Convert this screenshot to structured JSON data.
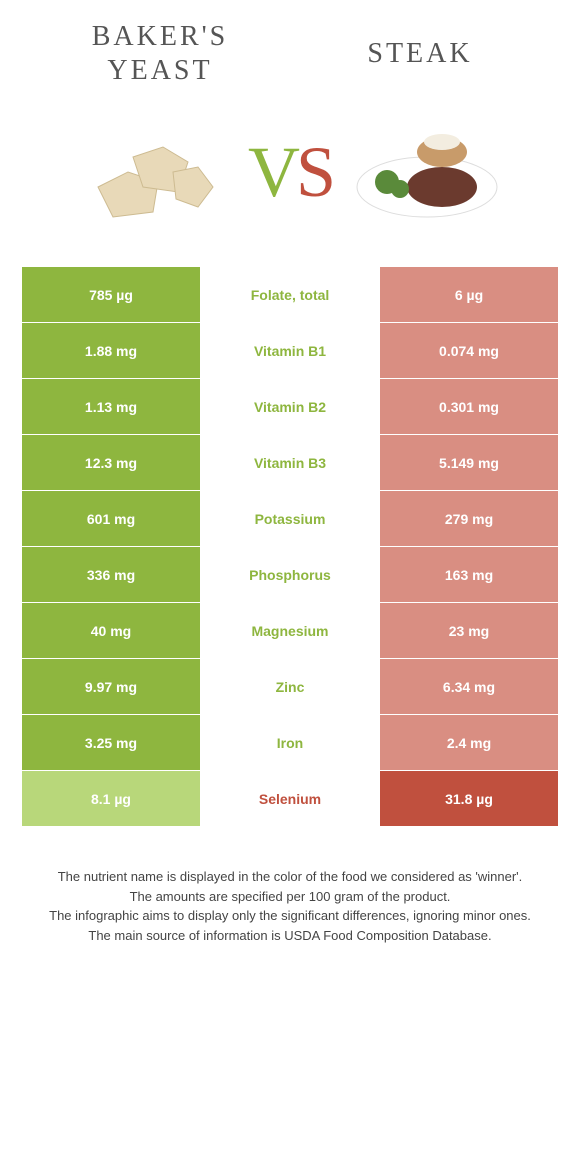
{
  "colors": {
    "left_win": "#8eb63f",
    "left_lose": "#b8d77a",
    "right_win": "#c0503e",
    "right_lose": "#d98e82",
    "label_left": "#8eb63f",
    "label_right": "#c0503e",
    "background": "#ffffff"
  },
  "foods": {
    "left": {
      "title": "BAKER'S\nYEAST"
    },
    "right": {
      "title": "STEAK"
    }
  },
  "vs": {
    "v": "V",
    "s": "S"
  },
  "rows": [
    {
      "left": "785 µg",
      "label": "Folate, total",
      "right": "6 µg",
      "winner": "left"
    },
    {
      "left": "1.88 mg",
      "label": "Vitamin B1",
      "right": "0.074 mg",
      "winner": "left"
    },
    {
      "left": "1.13 mg",
      "label": "Vitamin B2",
      "right": "0.301 mg",
      "winner": "left"
    },
    {
      "left": "12.3 mg",
      "label": "Vitamin B3",
      "right": "5.149 mg",
      "winner": "left"
    },
    {
      "left": "601 mg",
      "label": "Potassium",
      "right": "279 mg",
      "winner": "left"
    },
    {
      "left": "336 mg",
      "label": "Phosphorus",
      "right": "163 mg",
      "winner": "left"
    },
    {
      "left": "40 mg",
      "label": "Magnesium",
      "right": "23 mg",
      "winner": "left"
    },
    {
      "left": "9.97 mg",
      "label": "Zinc",
      "right": "6.34 mg",
      "winner": "left"
    },
    {
      "left": "3.25 mg",
      "label": "Iron",
      "right": "2.4 mg",
      "winner": "left"
    },
    {
      "left": "8.1 µg",
      "label": "Selenium",
      "right": "31.8 µg",
      "winner": "right"
    }
  ],
  "footnotes": [
    "The nutrient name is displayed in the color of the food we considered as 'winner'.",
    "The amounts are specified per 100 gram of the product.",
    "The infographic aims to display only the significant differences, ignoring minor ones.",
    "The main source of information is USDA Food Composition Database."
  ]
}
